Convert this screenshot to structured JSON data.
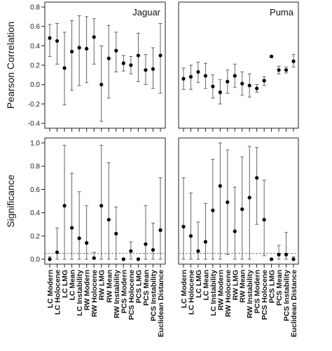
{
  "chart_data": {
    "type": "scatter",
    "categories": [
      "LC Modern",
      "LC Holocene",
      "LC LMG",
      "LC Mean",
      "LC Instability",
      "RW Modern",
      "RW Holocene",
      "RW LMG",
      "RW Mean",
      "RW Instability",
      "PCS Modern",
      "PCS Holocene",
      "PCS LMG",
      "PCS Mean",
      "PCS Instability",
      "Euclidean Distance"
    ],
    "rows": [
      {
        "ylabel": "Pearson Correlation",
        "ylim": [
          -0.4,
          0.8
        ],
        "yticks": [
          "-0.4",
          "-0.2",
          "0.0",
          "0.2",
          "0.4",
          "0.6",
          "0.8"
        ],
        "panels": [
          {
            "title": "Jaguar",
            "points": [
              {
                "y": 0.48,
                "lo": 0.29,
                "hi": 0.62
              },
              {
                "y": 0.45,
                "lo": 0.21,
                "hi": 0.63
              },
              {
                "y": 0.17,
                "lo": -0.21,
                "hi": 0.54
              },
              {
                "y": 0.34,
                "lo": -0.06,
                "hi": 0.66
              },
              {
                "y": 0.38,
                "lo": -0.01,
                "hi": 0.71
              },
              {
                "y": 0.37,
                "lo": 0.02,
                "hi": 0.7
              },
              {
                "y": 0.49,
                "lo": 0.21,
                "hi": 0.68
              },
              {
                "y": 0.0,
                "lo": -0.38,
                "hi": 0.4
              },
              {
                "y": 0.27,
                "lo": -0.14,
                "hi": 0.61
              },
              {
                "y": 0.35,
                "lo": 0.13,
                "hi": 0.54
              },
              {
                "y": 0.22,
                "lo": 0.14,
                "hi": 0.3
              },
              {
                "y": 0.2,
                "lo": 0.11,
                "hi": 0.29
              },
              {
                "y": 0.3,
                "lo": 0.03,
                "hi": 0.53
              },
              {
                "y": 0.15,
                "lo": 0.0,
                "hi": 0.31
              },
              {
                "y": 0.16,
                "lo": -0.04,
                "hi": 0.38
              },
              {
                "y": 0.3,
                "lo": -0.09,
                "hi": 0.63
              }
            ]
          },
          {
            "title": "Puma",
            "points": [
              {
                "y": 0.06,
                "lo": -0.05,
                "hi": 0.17
              },
              {
                "y": 0.08,
                "lo": -0.05,
                "hi": 0.2
              },
              {
                "y": 0.13,
                "lo": 0.02,
                "hi": 0.23
              },
              {
                "y": 0.09,
                "lo": -0.04,
                "hi": 0.22
              },
              {
                "y": -0.02,
                "lo": -0.14,
                "hi": 0.1
              },
              {
                "y": -0.08,
                "lo": -0.2,
                "hi": 0.05
              },
              {
                "y": 0.03,
                "lo": -0.09,
                "hi": 0.15
              },
              {
                "y": 0.09,
                "lo": -0.03,
                "hi": 0.21
              },
              {
                "y": 0.01,
                "lo": -0.11,
                "hi": 0.13
              },
              {
                "y": -0.01,
                "lo": -0.13,
                "hi": 0.11
              },
              {
                "y": -0.04,
                "lo": -0.08,
                "hi": 0.0
              },
              {
                "y": 0.04,
                "lo": -0.01,
                "hi": 0.08
              },
              {
                "y": 0.29,
                "lo": 0.28,
                "hi": 0.3
              },
              {
                "y": 0.15,
                "lo": 0.11,
                "hi": 0.19
              },
              {
                "y": 0.15,
                "lo": 0.12,
                "hi": 0.18
              },
              {
                "y": 0.24,
                "lo": 0.18,
                "hi": 0.31
              }
            ]
          }
        ]
      },
      {
        "ylabel": "Significance",
        "ylim": [
          0.0,
          1.0
        ],
        "yticks": [
          "0.0",
          "0.2",
          "0.4",
          "0.6",
          "0.8",
          "1.0"
        ],
        "threshold": 0.05,
        "panels": [
          {
            "title": "",
            "points": [
              {
                "y": 0.0,
                "lo": 0.0,
                "hi": 0.02
              },
              {
                "y": 0.06,
                "lo": 0.0,
                "hi": 0.27
              },
              {
                "y": 0.46,
                "lo": 0.0,
                "hi": 0.98
              },
              {
                "y": 0.27,
                "lo": 0.0,
                "hi": 0.74
              },
              {
                "y": 0.18,
                "lo": 0.0,
                "hi": 0.58
              },
              {
                "y": 0.14,
                "lo": 0.0,
                "hi": 0.46
              },
              {
                "y": 0.01,
                "lo": 0.0,
                "hi": 0.06
              },
              {
                "y": 0.46,
                "lo": 0.0,
                "hi": 0.98
              },
              {
                "y": 0.34,
                "lo": 0.0,
                "hi": 0.83
              },
              {
                "y": 0.22,
                "lo": 0.0,
                "hi": 0.45
              },
              {
                "y": 0.0,
                "lo": 0.0,
                "hi": 0.01
              },
              {
                "y": 0.07,
                "lo": 0.0,
                "hi": 0.15
              },
              {
                "y": 0.0,
                "lo": 0.0,
                "hi": 0.01
              },
              {
                "y": 0.13,
                "lo": 0.0,
                "hi": 0.46
              },
              {
                "y": 0.08,
                "lo": 0.0,
                "hi": 0.31
              },
              {
                "y": 0.25,
                "lo": 0.0,
                "hi": 0.7
              }
            ]
          },
          {
            "title": "",
            "points": [
              {
                "y": 0.28,
                "lo": 0.0,
                "hi": 0.7
              },
              {
                "y": 0.2,
                "lo": 0.0,
                "hi": 0.57
              },
              {
                "y": 0.07,
                "lo": 0.0,
                "hi": 0.32
              },
              {
                "y": 0.15,
                "lo": 0.0,
                "hi": 0.48
              },
              {
                "y": 0.42,
                "lo": 0.0,
                "hi": 0.86
              },
              {
                "y": 0.63,
                "lo": 0.0,
                "hi": 1.0
              },
              {
                "y": 0.49,
                "lo": 0.04,
                "hi": 0.94
              },
              {
                "y": 0.24,
                "lo": 0.0,
                "hi": 0.62
              },
              {
                "y": 0.43,
                "lo": 0.0,
                "hi": 0.88
              },
              {
                "y": 0.53,
                "lo": 0.0,
                "hi": 0.97
              },
              {
                "y": 0.7,
                "lo": 0.3,
                "hi": 0.96
              },
              {
                "y": 0.34,
                "lo": 0.03,
                "hi": 0.68
              },
              {
                "y": 0.0,
                "lo": 0.0,
                "hi": 0.0
              },
              {
                "y": 0.04,
                "lo": 0.0,
                "hi": 0.12
              },
              {
                "y": 0.04,
                "lo": 0.0,
                "hi": 0.23
              },
              {
                "y": 0.0,
                "lo": 0.0,
                "hi": 0.02
              }
            ]
          }
        ]
      }
    ],
    "colors": {
      "point": "#000000",
      "errorbar": "#555555",
      "threshold": "#e8453c",
      "axis": "#222222"
    },
    "grid": false,
    "legend": "none"
  }
}
